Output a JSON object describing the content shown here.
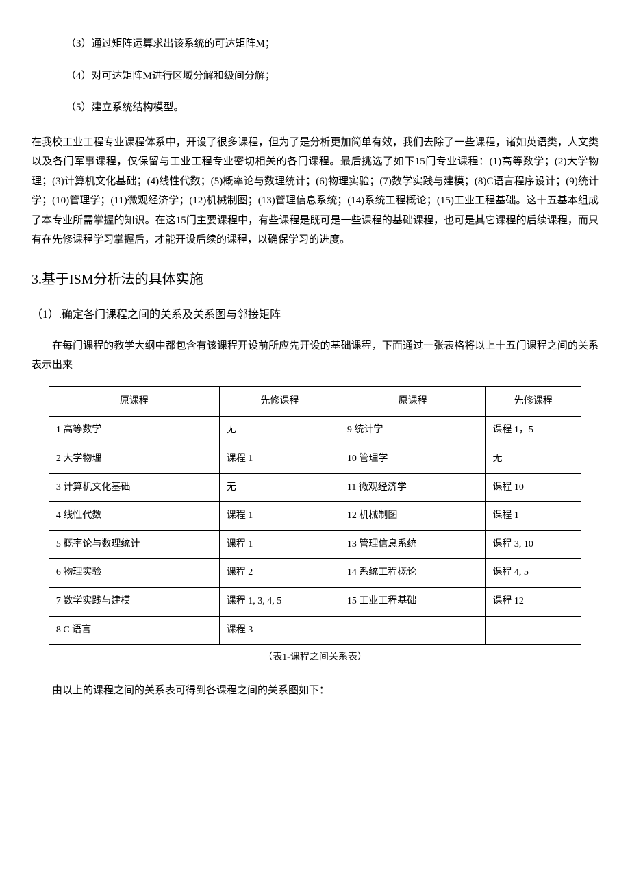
{
  "list_items": {
    "item3": "（3）通过矩阵运算求出该系统的可达矩阵M；",
    "item4": "（4）对可达矩阵M进行区域分解和级间分解；",
    "item5": "（5）建立系统结构模型。"
  },
  "paragraph1": "在我校工业工程专业课程体系中，开设了很多课程，但为了是分析更加简单有效，我们去除了一些课程，诸如英语类，人文类以及各门军事课程，仅保留与工业工程专业密切相关的各门课程。最后挑选了如下15门专业课程：(1)高等数学；(2)大学物理；(3)计算机文化基础；(4)线性代数；(5)概率论与数理统计；(6)物理实验；(7)数学实践与建模；(8)C语言程序设计；(9)统计学；(10)管理学；(11)微观经济学；(12)机械制图；(13)管理信息系统；(14)系统工程概论；(15)工业工程基础。这十五基本组成了本专业所需掌握的知识。在这15门主要课程中，有些课程是既可是一些课程的基础课程，也可是其它课程的后续课程，而只有在先修课程学习掌握后，才能开设后续的课程，以确保学习的进度。",
  "heading": "3.基于ISM分析法的具体实施",
  "subheading": "（1）.确定各门课程之间的关系及关系图与邻接矩阵",
  "indent_para": "在每门课程的教学大纲中都包含有该课程开设前所应先开设的基础课程，下面通过一张表格将以上十五门课程之间的关系表示出来",
  "table": {
    "headers": [
      "原课程",
      "先修课程",
      "原课程",
      "先修课程"
    ],
    "rows": [
      [
        "1 高等数学",
        "无",
        "9 统计学",
        "课程 1，5"
      ],
      [
        "2 大学物理",
        "课程 1",
        "10 管理学",
        "无"
      ],
      [
        "3 计算机文化基础",
        "无",
        "11 微观经济学",
        "课程 10"
      ],
      [
        "4 线性代数",
        "课程 1",
        "12 机械制图",
        "课程 1"
      ],
      [
        "5 概率论与数理统计",
        "课程 1",
        "13 管理信息系统",
        "课程 3, 10"
      ],
      [
        "6  物理实验",
        "课程 2",
        "14  系统工程概论",
        "课程 4, 5"
      ],
      [
        "7 数学实践与建模",
        "课程 1, 3, 4, 5",
        "15 工业工程基础",
        "课程 12"
      ],
      [
        "8    C 语言",
        "课程 3",
        "",
        ""
      ]
    ],
    "caption": "（表1-课程之间关系表）"
  },
  "closing_para": "由以上的课程之间的关系表可得到各课程之间的关系图如下："
}
